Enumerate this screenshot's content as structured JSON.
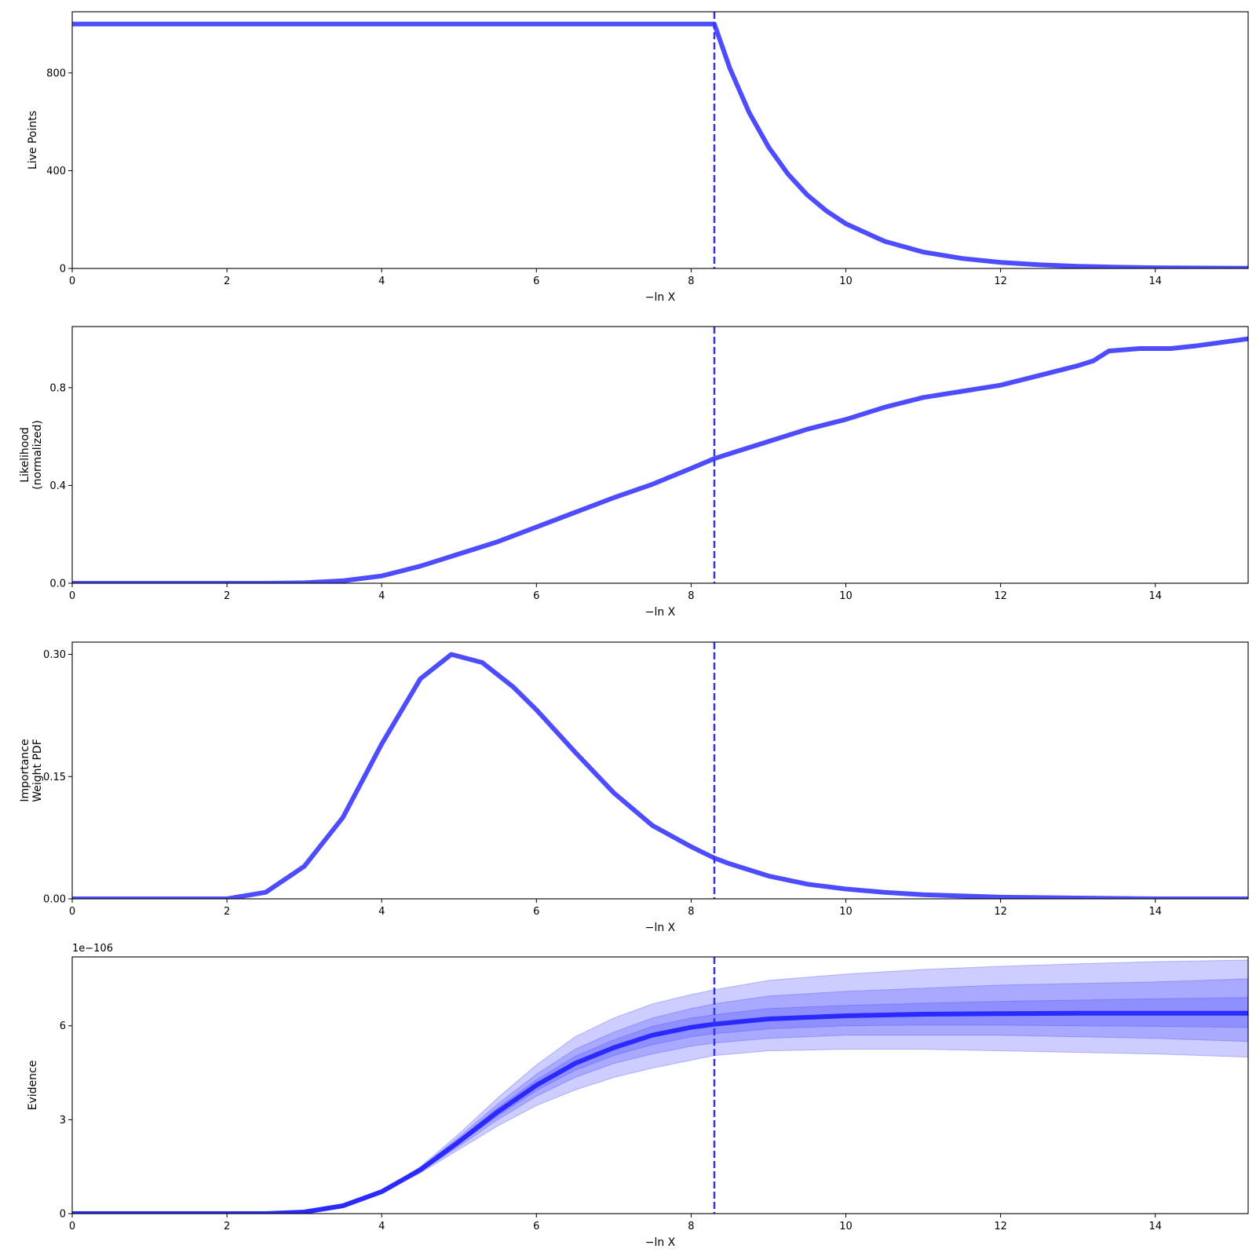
{
  "chart_data": [
    {
      "type": "line",
      "xlabel": "−ln X",
      "ylabel": "Live Points",
      "xlim": [
        0,
        15.2
      ],
      "ylim": [
        0,
        1050
      ],
      "xticks": [
        "0",
        "2",
        "4",
        "6",
        "8",
        "10",
        "12",
        "14"
      ],
      "yticks": [
        "0",
        "400",
        "800"
      ],
      "vline": 8.3,
      "series": [
        {
          "color": "#4d4dff",
          "x": [
            0,
            8.3,
            8.5,
            8.75,
            9.0,
            9.25,
            9.5,
            9.75,
            10.0,
            10.5,
            11.0,
            11.5,
            12.0,
            12.5,
            13.0,
            13.5,
            14.0,
            14.5,
            15.2
          ],
          "values": [
            1000,
            1000,
            819,
            638,
            497,
            387,
            301,
            235,
            183,
            111,
            67,
            41,
            25,
            15,
            9,
            5,
            3,
            2,
            1
          ]
        }
      ]
    },
    {
      "type": "line",
      "xlabel": "−ln X",
      "ylabel": [
        "Likelihood",
        "(normalized)"
      ],
      "xlim": [
        0,
        15.2
      ],
      "ylim": [
        0,
        1.05
      ],
      "xticks": [
        "0",
        "2",
        "4",
        "6",
        "8",
        "10",
        "12",
        "14"
      ],
      "yticks": [
        "0.0",
        "0.4",
        "0.8"
      ],
      "vline": 8.3,
      "series": [
        {
          "color": "#4d4dff",
          "x": [
            0,
            2.5,
            3.0,
            3.5,
            4.0,
            4.5,
            5.0,
            5.5,
            6.0,
            6.5,
            7.0,
            7.5,
            8.0,
            8.3,
            8.5,
            9.0,
            9.5,
            10.0,
            10.5,
            11.0,
            11.5,
            12.0,
            12.5,
            13.0,
            13.2,
            13.4,
            13.8,
            14.2,
            14.5,
            15.2
          ],
          "values": [
            0.0,
            0.0,
            0.002,
            0.01,
            0.03,
            0.07,
            0.12,
            0.17,
            0.23,
            0.29,
            0.35,
            0.405,
            0.47,
            0.51,
            0.53,
            0.58,
            0.63,
            0.67,
            0.72,
            0.76,
            0.785,
            0.81,
            0.85,
            0.89,
            0.91,
            0.95,
            0.96,
            0.96,
            0.97,
            1.0
          ]
        }
      ]
    },
    {
      "type": "line",
      "xlabel": "−ln X",
      "ylabel": [
        "Importance",
        "Weight PDF"
      ],
      "xlim": [
        0,
        15.2
      ],
      "ylim": [
        0,
        0.315
      ],
      "xticks": [
        "0",
        "2",
        "4",
        "6",
        "8",
        "10",
        "12",
        "14"
      ],
      "yticks": [
        "0.00",
        "0.15",
        "0.30"
      ],
      "vline": 8.3,
      "series": [
        {
          "color": "#4d4dff",
          "x": [
            0,
            2.0,
            2.5,
            3.0,
            3.5,
            4.0,
            4.5,
            4.9,
            5.3,
            5.7,
            6.0,
            6.5,
            7.0,
            7.5,
            8.0,
            8.3,
            8.5,
            9.0,
            9.5,
            10.0,
            10.5,
            11.0,
            12.0,
            13.0,
            14.0,
            15.2
          ],
          "values": [
            0.0,
            0.0,
            0.008,
            0.04,
            0.1,
            0.19,
            0.27,
            0.3,
            0.29,
            0.26,
            0.232,
            0.18,
            0.13,
            0.09,
            0.064,
            0.05,
            0.043,
            0.028,
            0.018,
            0.012,
            0.008,
            0.005,
            0.002,
            0.001,
            0.0,
            0.0
          ]
        }
      ]
    },
    {
      "type": "area",
      "xlabel": "−ln X",
      "ylabel": "Evidence",
      "offset_text": "1e−106",
      "xlim": [
        0,
        15.2
      ],
      "ylim": [
        0,
        8.2
      ],
      "xticks": [
        "0",
        "2",
        "4",
        "6",
        "8",
        "10",
        "12",
        "14"
      ],
      "yticks": [
        "0",
        "3",
        "6"
      ],
      "vline": 8.3,
      "x": [
        0,
        2.5,
        3.0,
        3.5,
        4.0,
        4.5,
        5.0,
        5.5,
        6.0,
        6.5,
        7.0,
        7.5,
        8.0,
        8.3,
        9.0,
        10.0,
        11.0,
        12.0,
        13.0,
        14.0,
        15.2
      ],
      "series": [
        {
          "name": "mean",
          "color": "#2a2aff",
          "values": [
            0.0,
            0.0,
            0.05,
            0.25,
            0.7,
            1.4,
            2.3,
            3.25,
            4.1,
            4.8,
            5.3,
            5.7,
            5.95,
            6.05,
            6.22,
            6.32,
            6.37,
            6.39,
            6.4,
            6.4,
            6.4
          ]
        },
        {
          "name": "band-3",
          "color": "#4d4dff",
          "alpha": 0.28,
          "lower": [
            0.0,
            0.0,
            0.05,
            0.24,
            0.67,
            1.3,
            2.05,
            2.8,
            3.45,
            3.95,
            4.35,
            4.65,
            4.9,
            5.05,
            5.2,
            5.25,
            5.25,
            5.2,
            5.15,
            5.1,
            5.0
          ],
          "upper": [
            0.0,
            0.0,
            0.05,
            0.26,
            0.73,
            1.5,
            2.55,
            3.7,
            4.75,
            5.65,
            6.25,
            6.7,
            7.0,
            7.15,
            7.45,
            7.65,
            7.8,
            7.9,
            7.98,
            8.05,
            8.1
          ]
        },
        {
          "name": "band-2",
          "color": "#4d4dff",
          "alpha": 0.28,
          "lower": [
            0.0,
            0.0,
            0.05,
            0.245,
            0.68,
            1.34,
            2.15,
            3.0,
            3.75,
            4.35,
            4.8,
            5.1,
            5.35,
            5.45,
            5.6,
            5.7,
            5.7,
            5.7,
            5.65,
            5.6,
            5.5
          ],
          "upper": [
            0.0,
            0.0,
            0.05,
            0.255,
            0.72,
            1.46,
            2.45,
            3.5,
            4.45,
            5.25,
            5.8,
            6.25,
            6.55,
            6.7,
            6.95,
            7.1,
            7.2,
            7.3,
            7.35,
            7.4,
            7.5
          ]
        },
        {
          "name": "band-1",
          "color": "#4d4dff",
          "alpha": 0.28,
          "lower": [
            0.0,
            0.0,
            0.05,
            0.248,
            0.69,
            1.37,
            2.23,
            3.12,
            3.93,
            4.58,
            5.05,
            5.4,
            5.65,
            5.75,
            5.9,
            6.0,
            6.02,
            6.02,
            6.0,
            5.98,
            5.95
          ],
          "upper": [
            0.0,
            0.0,
            0.05,
            0.252,
            0.71,
            1.43,
            2.37,
            3.38,
            4.27,
            5.02,
            5.55,
            5.98,
            6.25,
            6.35,
            6.55,
            6.65,
            6.72,
            6.78,
            6.82,
            6.86,
            6.9
          ]
        }
      ]
    }
  ]
}
